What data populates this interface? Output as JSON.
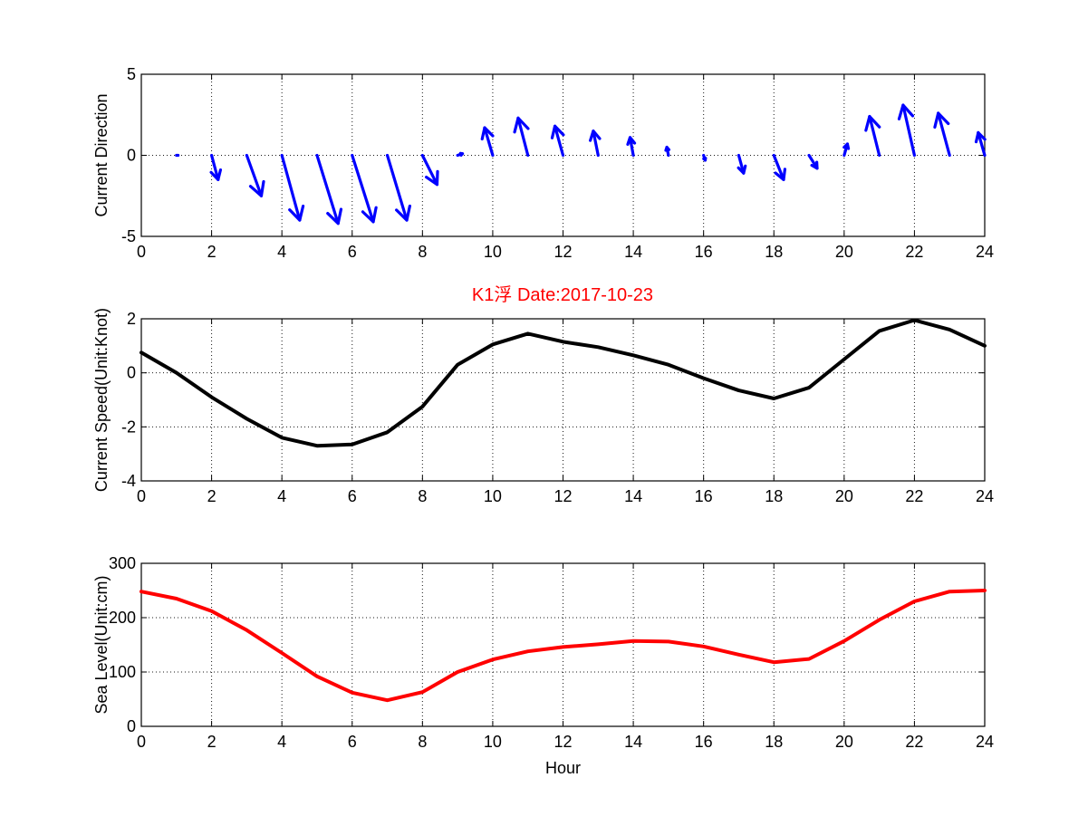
{
  "title": "K1浮    Date:2017-10-23",
  "colors": {
    "arrows": "#0000ff",
    "speed": "#000000",
    "sea_level": "#ff0000",
    "title": "#ff0000"
  },
  "chart_data": [
    {
      "type": "quiver",
      "ylabel": "Current Direction",
      "xlabel": "",
      "xlim": [
        0,
        24
      ],
      "ylim": [
        -5,
        5
      ],
      "xticks": [
        0,
        2,
        4,
        6,
        8,
        10,
        12,
        14,
        16,
        18,
        20,
        22,
        24
      ],
      "yticks": [
        -5,
        0,
        5
      ],
      "grid": true,
      "x": [
        1,
        2,
        3,
        4,
        5,
        6,
        7,
        8,
        9,
        10,
        11,
        12,
        13,
        14,
        15,
        16,
        17,
        18,
        19,
        20,
        21,
        22,
        23,
        24
      ],
      "u": [
        0.1,
        0.4,
        0.9,
        1.1,
        1.3,
        1.3,
        1.2,
        0.9,
        0.3,
        -0.5,
        -0.6,
        -0.5,
        -0.3,
        -0.2,
        -0.1,
        0.1,
        0.3,
        0.6,
        0.5,
        0.2,
        -0.6,
        -0.7,
        -0.7,
        -0.4
      ],
      "v": [
        0.0,
        -1.5,
        -2.5,
        -4.0,
        -4.2,
        -4.1,
        -4.0,
        -1.8,
        0.1,
        1.7,
        2.3,
        1.8,
        1.5,
        1.1,
        0.5,
        -0.3,
        -1.1,
        -1.5,
        -0.8,
        0.7,
        2.4,
        3.1,
        2.6,
        1.4
      ]
    },
    {
      "type": "line",
      "ylabel": "Current Speed(Unit:Knot)",
      "xlabel": "",
      "xlim": [
        0,
        24
      ],
      "ylim": [
        -4,
        2
      ],
      "xticks": [
        0,
        2,
        4,
        6,
        8,
        10,
        12,
        14,
        16,
        18,
        20,
        22,
        24
      ],
      "yticks": [
        -4,
        -2,
        0,
        2
      ],
      "grid": true,
      "series": [
        {
          "x": [
            0,
            1,
            2,
            3,
            4,
            5,
            6,
            7,
            8,
            9,
            10,
            11,
            12,
            13,
            14,
            15,
            16,
            17,
            18,
            19,
            20,
            21,
            22,
            23,
            24
          ],
          "values": [
            0.75,
            0.0,
            -0.9,
            -1.7,
            -2.4,
            -2.7,
            -2.65,
            -2.2,
            -1.25,
            0.3,
            1.05,
            1.45,
            1.15,
            0.95,
            0.65,
            0.3,
            -0.2,
            -0.65,
            -0.95,
            -0.55,
            0.5,
            1.55,
            1.95,
            1.6,
            1.0
          ]
        }
      ]
    },
    {
      "type": "line",
      "ylabel": "Sea Level(Unit:cm)",
      "xlabel": "Hour",
      "xlim": [
        0,
        24
      ],
      "ylim": [
        0,
        300
      ],
      "xticks": [
        0,
        2,
        4,
        6,
        8,
        10,
        12,
        14,
        16,
        18,
        20,
        22,
        24
      ],
      "yticks": [
        0,
        100,
        200,
        300
      ],
      "grid": true,
      "series": [
        {
          "x": [
            0,
            1,
            2,
            3,
            4,
            5,
            6,
            7,
            8,
            9,
            10,
            11,
            12,
            13,
            14,
            15,
            16,
            17,
            18,
            19,
            20,
            21,
            22,
            23,
            24
          ],
          "values": [
            248,
            235,
            212,
            177,
            135,
            92,
            62,
            48,
            63,
            100,
            123,
            138,
            146,
            151,
            157,
            156,
            147,
            132,
            118,
            124,
            157,
            196,
            230,
            248,
            250
          ]
        }
      ]
    }
  ]
}
